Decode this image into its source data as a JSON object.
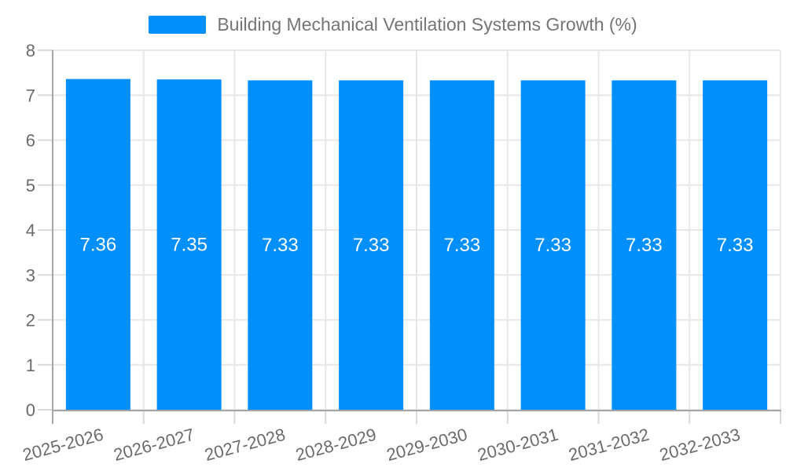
{
  "legend": {
    "series_label": "Building Mechanical Ventilation Systems Growth (%)"
  },
  "colors": {
    "bar": "#008FFB",
    "grid": "#e7e7e7",
    "axis": "#a6a6a6",
    "tick": "#d9d9d9",
    "axis_label": "#6b6b6b",
    "legend_text": "#757575",
    "bar_label": "#ffffff",
    "background": "#ffffff"
  },
  "chart_data": {
    "type": "bar",
    "title": "Building Mechanical Ventilation Systems Growth (%)",
    "categories": [
      "2025-2026",
      "2026-2027",
      "2027-2028",
      "2028-2029",
      "2029-2030",
      "2030-2031",
      "2031-2032",
      "2032-2033"
    ],
    "values": [
      7.36,
      7.35,
      7.33,
      7.33,
      7.33,
      7.33,
      7.33,
      7.33
    ],
    "value_labels": [
      "7.36",
      "7.35",
      "7.33",
      "7.33",
      "7.33",
      "7.33",
      "7.33",
      "7.33"
    ],
    "xlabel": "",
    "ylabel": "",
    "ylim": [
      0,
      8
    ],
    "y_ticks": [
      0,
      1,
      2,
      3,
      4,
      5,
      6,
      7,
      8
    ],
    "grid": true,
    "legend_position": "top",
    "x_label_rotation": -15,
    "bar_label_position": "center"
  }
}
